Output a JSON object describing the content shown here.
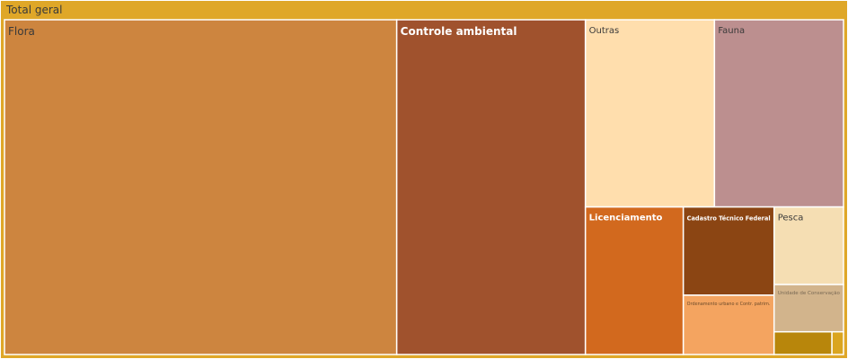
{
  "chart_data": {
    "type": "treemap",
    "root": {
      "label": "Total geral",
      "color": "#DFA728"
    },
    "nodes": [
      {
        "label": "Flora",
        "value": 1000,
        "color": "#CD853F",
        "text_color": "#3a3a3a"
      },
      {
        "label": "Controle ambiental",
        "value": 481,
        "color": "#A0522D",
        "text_color": "#ffffff",
        "bold": true
      },
      {
        "label": "Outras",
        "value": 184,
        "color": "#FFDEAD",
        "text_color": "#3a3a3a"
      },
      {
        "label": "Fauna",
        "value": 184,
        "color": "#BC8F8F",
        "text_color": "#3a3a3a"
      },
      {
        "label": "Licenciamento",
        "value": 110,
        "color": "#D2691E",
        "text_color": "#ffffff",
        "bold": true
      },
      {
        "label": "Cadastro Técnico Federal",
        "value": 61,
        "color": "#8B4513",
        "text_color": "#ffffff",
        "bold": true
      },
      {
        "label": "Ordenamento urbano e Contr. patrim.",
        "value": 41,
        "color": "#F4A460",
        "text_color": "#6b4a2a"
      },
      {
        "label": "Pesca",
        "value": 41,
        "color": "#F5DEB3",
        "text_color": "#3a3a3a"
      },
      {
        "label": "Unidade de Conservação",
        "value": 25,
        "color": "#D2B48C",
        "text_color": "#7a6a55"
      },
      {
        "label": "",
        "value": 10,
        "color": "#B8860B",
        "text_color": "#3a3a3a"
      },
      {
        "label": "",
        "value": 2,
        "color": "#DAA520",
        "text_color": "#3a3a3a"
      }
    ]
  }
}
